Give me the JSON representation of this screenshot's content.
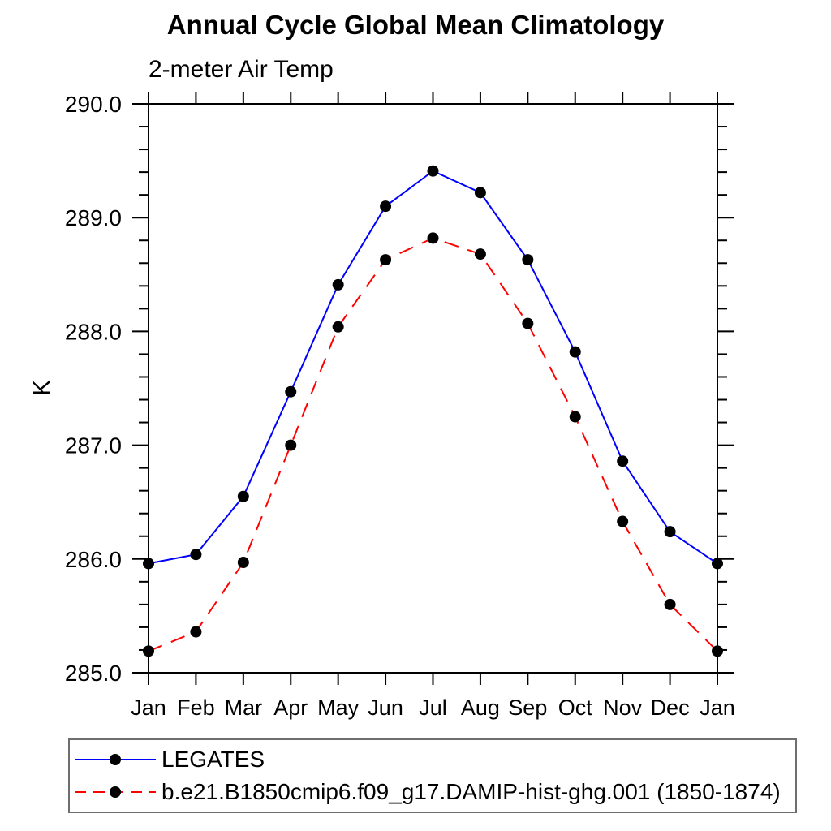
{
  "title": "Annual Cycle Global Mean Climatology",
  "subtitle": "2-meter Air Temp",
  "chart_data": {
    "type": "line",
    "title": "Annual Cycle Global Mean Climatology",
    "subtitle": "2-meter Air Temp",
    "xlabel": "",
    "ylabel": "K",
    "categories": [
      "Jan",
      "Feb",
      "Mar",
      "Apr",
      "May",
      "Jun",
      "Jul",
      "Aug",
      "Sep",
      "Oct",
      "Nov",
      "Dec",
      "Jan"
    ],
    "ylim": [
      285.0,
      290.0
    ],
    "ytick_major": [
      285.0,
      286.0,
      287.0,
      288.0,
      289.0,
      290.0
    ],
    "ytick_labels": [
      "285.0",
      "286.0",
      "287.0",
      "288.0",
      "289.0",
      "290.0"
    ],
    "ytick_minor_interval": 0.2,
    "grid": false,
    "legend_position": "bottom",
    "axis_color": "#000000",
    "marker_radius": 7,
    "series": [
      {
        "name": "LEGATES",
        "color": "#0000ff",
        "style": "solid",
        "marker": "filled-circle",
        "marker_color": "#000000",
        "values": [
          285.96,
          286.04,
          286.55,
          287.47,
          288.41,
          289.1,
          289.41,
          289.22,
          288.63,
          287.82,
          286.86,
          286.24,
          285.96
        ]
      },
      {
        "name": "b.e21.B1850cmip6.f09_g17.DAMIP-hist-ghg.001 (1850-1874)",
        "color": "#ff0000",
        "style": "dashed",
        "marker": "filled-circle",
        "marker_color": "#000000",
        "values": [
          285.19,
          285.36,
          285.97,
          287.0,
          288.04,
          288.63,
          288.82,
          288.68,
          288.07,
          287.25,
          286.33,
          285.6,
          285.19
        ]
      }
    ]
  }
}
